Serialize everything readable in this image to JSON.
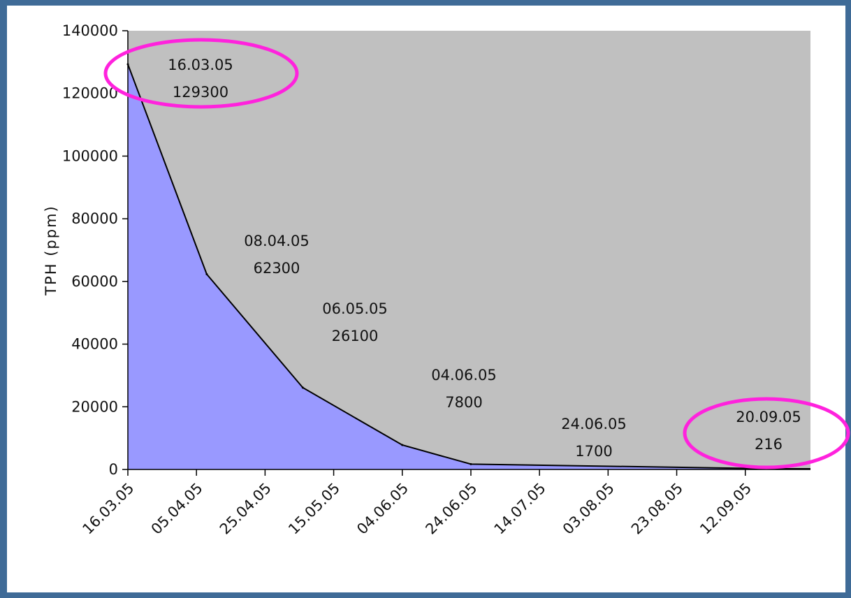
{
  "chart_data": {
    "type": "area",
    "title": "",
    "xlabel": "",
    "ylabel": "TPH (ppm)",
    "ylim": [
      0,
      140000
    ],
    "yticks": [
      0,
      20000,
      40000,
      60000,
      80000,
      100000,
      120000,
      140000
    ],
    "xlim": [
      "2005-03-16",
      "2005-10-01"
    ],
    "xticks": [
      "16.03.05",
      "05.04.05",
      "25.04.05",
      "15.05.05",
      "04.06.05",
      "24.06.05",
      "14.07.05",
      "03.08.05",
      "23.08.05",
      "12.09.05"
    ],
    "grid": false,
    "legend": "none",
    "series": [
      {
        "name": "",
        "x": [
          "16.03.05",
          "08.04.05",
          "06.05.05",
          "04.06.05",
          "24.06.05",
          "20.09.05"
        ],
        "values": [
          129300,
          62300,
          26100,
          7800,
          1700,
          216
        ]
      }
    ],
    "annotations": [
      {
        "date": "16.03.05",
        "value": "129300",
        "highlighted": true
      },
      {
        "date": "08.04.05",
        "value": "62300",
        "highlighted": false
      },
      {
        "date": "06.05.05",
        "value": "26100",
        "highlighted": false
      },
      {
        "date": "04.06.05",
        "value": "7800",
        "highlighted": false
      },
      {
        "date": "24.06.05",
        "value": "1700",
        "highlighted": false
      },
      {
        "date": "20.09.05",
        "value": "216",
        "highlighted": true
      }
    ],
    "colors": {
      "background": "#3f6b97",
      "plot_area": "#c0c0c0",
      "fill": "#9999ff",
      "line": "#000000",
      "highlight": "#ff22dd"
    }
  }
}
